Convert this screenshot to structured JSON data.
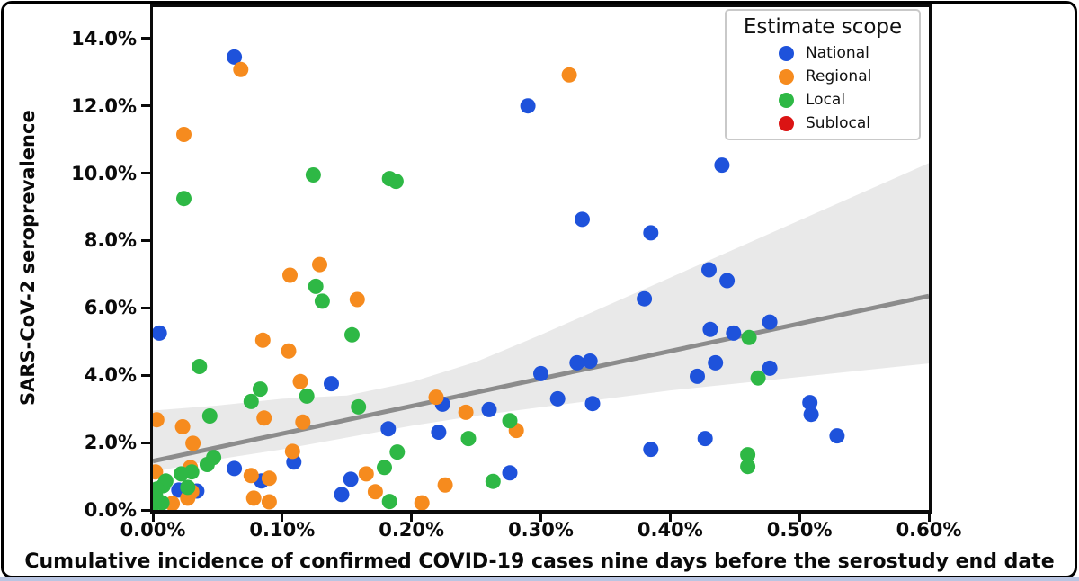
{
  "chart_data": {
    "type": "scatter",
    "xlabel": "Cumulative incidence of confirmed COVID-19 cases nine days before the serostudy end date",
    "ylabel": "SARS-CoV-2 seroprevalence",
    "xlim": [
      0,
      0.6
    ],
    "ylim": [
      0,
      14.93
    ],
    "x_ticks": [
      "0.00%",
      "0.10%",
      "0.20%",
      "0.30%",
      "0.40%",
      "0.50%",
      "0.60%"
    ],
    "y_ticks": [
      "0.0%",
      "2.0%",
      "4.0%",
      "6.0%",
      "8.0%",
      "10.0%",
      "12.0%",
      "14.0%"
    ],
    "grid": false,
    "legend": {
      "title": "Estimate scope",
      "position": "upper right",
      "entries": [
        {
          "label": "National",
          "color": "#1e52db"
        },
        {
          "label": "Regional",
          "color": "#f68b1e"
        },
        {
          "label": "Local",
          "color": "#2eb845"
        },
        {
          "label": "Sublocal",
          "color": "#db1414"
        }
      ]
    },
    "marker_radius": 8.5,
    "series": [
      {
        "name": "National",
        "color": "#1e52db",
        "points": [
          [
            0.005,
            5.25
          ],
          [
            0.063,
            13.45
          ],
          [
            0.29,
            12.0
          ],
          [
            0.44,
            10.24
          ],
          [
            0.332,
            8.63
          ],
          [
            0.385,
            8.23
          ],
          [
            0.43,
            7.13
          ],
          [
            0.444,
            6.81
          ],
          [
            0.38,
            6.27
          ],
          [
            0.477,
            5.58
          ],
          [
            0.431,
            5.36
          ],
          [
            0.449,
            5.25
          ],
          [
            0.435,
            4.37
          ],
          [
            0.477,
            4.21
          ],
          [
            0.421,
            3.97
          ],
          [
            0.328,
            4.37
          ],
          [
            0.338,
            4.42
          ],
          [
            0.3,
            4.05
          ],
          [
            0.313,
            3.3
          ],
          [
            0.34,
            3.16
          ],
          [
            0.138,
            3.75
          ],
          [
            0.224,
            3.14
          ],
          [
            0.26,
            2.98
          ],
          [
            0.221,
            2.31
          ],
          [
            0.182,
            2.41
          ],
          [
            0.508,
            3.19
          ],
          [
            0.509,
            2.84
          ],
          [
            0.529,
            2.2
          ],
          [
            0.427,
            2.12
          ],
          [
            0.385,
            1.8
          ],
          [
            0.276,
            1.1
          ],
          [
            0.153,
            0.91
          ],
          [
            0.146,
            0.46
          ],
          [
            0.109,
            1.42
          ],
          [
            0.063,
            1.23
          ],
          [
            0.084,
            0.86
          ],
          [
            0.02,
            0.59
          ],
          [
            0.034,
            0.56
          ]
        ]
      },
      {
        "name": "Regional",
        "color": "#f68b1e",
        "points": [
          [
            0.068,
            13.08
          ],
          [
            0.322,
            12.92
          ],
          [
            0.024,
            11.15
          ],
          [
            0.129,
            7.29
          ],
          [
            0.106,
            6.97
          ],
          [
            0.158,
            6.25
          ],
          [
            0.085,
            5.04
          ],
          [
            0.105,
            4.72
          ],
          [
            0.114,
            3.81
          ],
          [
            0.003,
            2.68
          ],
          [
            0.023,
            2.47
          ],
          [
            0.031,
            1.98
          ],
          [
            0.086,
            2.73
          ],
          [
            0.116,
            2.61
          ],
          [
            0.219,
            3.35
          ],
          [
            0.242,
            2.9
          ],
          [
            0.281,
            2.36
          ],
          [
            0.108,
            1.74
          ],
          [
            0.165,
            1.07
          ],
          [
            0.172,
            0.54
          ],
          [
            0.076,
            1.02
          ],
          [
            0.09,
            0.94
          ],
          [
            0.078,
            0.35
          ],
          [
            0.09,
            0.24
          ],
          [
            0.226,
            0.74
          ],
          [
            0.208,
            0.21
          ],
          [
            0.002,
            1.13
          ],
          [
            0.029,
            1.26
          ],
          [
            0.03,
            0.54
          ],
          [
            0.027,
            0.35
          ],
          [
            0.015,
            0.19
          ]
        ]
      },
      {
        "name": "Local",
        "color": "#2eb845",
        "points": [
          [
            0.124,
            9.95
          ],
          [
            0.183,
            9.84
          ],
          [
            0.188,
            9.76
          ],
          [
            0.024,
            9.25
          ],
          [
            0.126,
            6.64
          ],
          [
            0.131,
            6.2
          ],
          [
            0.154,
            5.2
          ],
          [
            0.036,
            4.26
          ],
          [
            0.083,
            3.59
          ],
          [
            0.076,
            3.22
          ],
          [
            0.119,
            3.38
          ],
          [
            0.159,
            3.06
          ],
          [
            0.044,
            2.79
          ],
          [
            0.276,
            2.65
          ],
          [
            0.244,
            2.12
          ],
          [
            0.189,
            1.72
          ],
          [
            0.179,
            1.26
          ],
          [
            0.047,
            1.56
          ],
          [
            0.042,
            1.35
          ],
          [
            0.461,
            5.12
          ],
          [
            0.468,
            3.92
          ],
          [
            0.46,
            1.64
          ],
          [
            0.46,
            1.29
          ],
          [
            0.263,
            0.85
          ],
          [
            0.183,
            0.25
          ],
          [
            0.03,
            1.13
          ],
          [
            0.022,
            1.07
          ],
          [
            0.01,
            0.86
          ],
          [
            0.008,
            0.72
          ],
          [
            0.027,
            0.67
          ],
          [
            0.003,
            0.62
          ],
          [
            0.002,
            0.43
          ],
          [
            0.007,
            0.21
          ],
          [
            0.001,
            0.19
          ]
        ]
      },
      {
        "name": "Sublocal",
        "color": "#db1414",
        "points": []
      }
    ],
    "regression": {
      "line": [
        [
          0,
          1.45
        ],
        [
          0.6,
          6.35
        ]
      ],
      "line_color": "#8c8c8c",
      "line_width": 5,
      "band_color": "#e9e9e9",
      "band_upper": [
        [
          0,
          2.95
        ],
        [
          0.05,
          3.1
        ],
        [
          0.1,
          3.3
        ],
        [
          0.15,
          3.4
        ],
        [
          0.2,
          3.8
        ],
        [
          0.25,
          4.4
        ],
        [
          0.3,
          5.2
        ],
        [
          0.4,
          6.9
        ],
        [
          0.5,
          8.6
        ],
        [
          0.6,
          10.3
        ]
      ],
      "band_lower": [
        [
          0,
          1.13
        ],
        [
          0.05,
          1.5
        ],
        [
          0.1,
          1.8
        ],
        [
          0.15,
          2.15
        ],
        [
          0.2,
          2.5
        ],
        [
          0.25,
          2.8
        ],
        [
          0.3,
          3.05
        ],
        [
          0.4,
          3.55
        ],
        [
          0.5,
          3.95
        ],
        [
          0.6,
          4.35
        ]
      ]
    }
  }
}
